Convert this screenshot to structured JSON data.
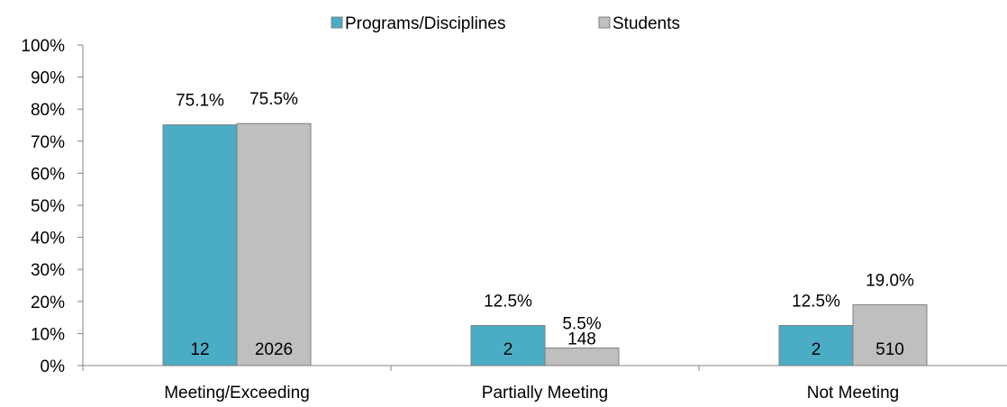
{
  "chart_data": {
    "type": "bar",
    "categories": [
      "Meeting/Exceeding",
      "Partially Meeting",
      "Not Meeting"
    ],
    "series": [
      {
        "name": "Programs/Disciplines",
        "color": "#4BACC6",
        "values": [
          75.1,
          12.5,
          12.5
        ],
        "value_labels": [
          "75.1%",
          "12.5%",
          "12.5%"
        ],
        "count_labels": [
          "12",
          "2",
          "2"
        ]
      },
      {
        "name": "Students",
        "color": "#BFBFBF",
        "values": [
          75.5,
          5.5,
          19.0
        ],
        "value_labels": [
          "75.5%",
          "5.5%",
          "19.0%"
        ],
        "count_labels": [
          "2026",
          "148",
          "510"
        ]
      }
    ],
    "ylim": [
      0,
      100
    ],
    "yticks": [
      "0%",
      "10%",
      "20%",
      "30%",
      "40%",
      "50%",
      "60%",
      "70%",
      "80%",
      "90%",
      "100%"
    ],
    "legend_position": "top-center",
    "grid": false,
    "xlabel": "",
    "ylabel": "",
    "title": ""
  }
}
